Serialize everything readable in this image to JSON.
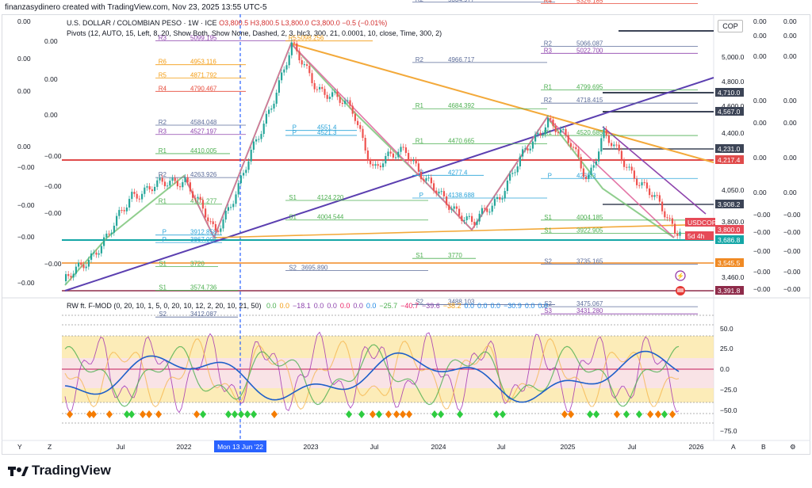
{
  "header": {
    "attribution": "finanzasydinero created with TradingView.com, Nov 23, 2025 13:55 UTC-5"
  },
  "legend": {
    "symbol": "U.S. DOLLAR / COLOMBIAN PESO · 1W · ICE",
    "o": "O3,800.5",
    "h": "H3,800.5",
    "l": "L3,800.0",
    "c": "C3,800.0",
    "chg": "−0.5 (−0.01%)",
    "pivots": "Pivots (12, AUTO, 15, Left, 8, 20, Show Both, Show None, Dashed, 2, 3, hlc3, 300, 21, 0.0001, 10, close, Time, 300, 2)"
  },
  "currency_button": "COP",
  "price_axis": [
    "5,000.0",
    "4,800.0",
    "4,600.0",
    "4,400.0",
    "4,050.0",
    "3,800.0",
    "3,460.0"
  ],
  "price_tags": [
    {
      "label": "4,710.0",
      "color": "#3c4456"
    },
    {
      "label": "4,567.0",
      "color": "#3c4456"
    },
    {
      "label": "4,231.0",
      "color": "#3c4456"
    },
    {
      "label": "4,217.4",
      "color": "#e04b4b"
    },
    {
      "label": "3,908.2",
      "color": "#3c4456"
    },
    {
      "label": "USDCOP",
      "color": "#e64a57"
    },
    {
      "label": "3,800.0",
      "color": "#e64a57"
    },
    {
      "label": "5d 4h",
      "color": "#e64a57"
    },
    {
      "label": "3,686.8",
      "color": "#14a6a6"
    },
    {
      "label": "3,545.5",
      "color": "#f08a24"
    },
    {
      "label": "3,391.8",
      "color": "#8e2b4a"
    }
  ],
  "left_zero_labels": [
    "0.00",
    "0.00",
    "0.00",
    "0.00",
    "0.00",
    "0.00",
    "0.00",
    "−0.00",
    "−0.00",
    "−0.00",
    "−0.00",
    "−0.00",
    "−0.00",
    "−0.00",
    "−0.00"
  ],
  "right_zero_labels": [
    "0.00",
    "0.00",
    "0.00",
    "0.00",
    "0.00",
    "0.00",
    "0.00",
    "−0.00",
    "−0.00",
    "−0.00",
    "−0.00",
    "−0.00",
    "−0.00",
    "−0.00",
    "−0.00"
  ],
  "pivot_levels": [
    {
      "name": "R3",
      "value": "5099.195",
      "color": "#8e44ad"
    },
    {
      "name": "R6",
      "value": "4953.116",
      "color": "#f39c12"
    },
    {
      "name": "R5",
      "value": "4871.792",
      "color": "#f39c12"
    },
    {
      "name": "R4",
      "value": "4790.467",
      "color": "#e74c3c"
    },
    {
      "name": "R2",
      "value": "4584.048",
      "color": "#5d6d9a"
    },
    {
      "name": "R3",
      "value": "4527.197",
      "color": "#8e44ad"
    },
    {
      "name": "R1",
      "value": "4410.005",
      "color": "#4caf50"
    },
    {
      "name": "R2",
      "value": "4263.926",
      "color": "#5d6d9a"
    },
    {
      "name": "R1",
      "value": "4101.277",
      "color": "#4caf50"
    },
    {
      "name": "S1",
      "value": "3720",
      "color": "#4caf50"
    },
    {
      "name": "S1",
      "value": "3574.736",
      "color": "#4caf50"
    },
    {
      "name": "S2",
      "value": "3412.087",
      "color": "#5d6d9a"
    },
    {
      "name": "R2",
      "value": "5334.977",
      "color": "#5d6d9a"
    },
    {
      "name": "R2",
      "value": "4966.717",
      "color": "#5d6d9a"
    },
    {
      "name": "R1",
      "value": "4684.392",
      "color": "#4caf50"
    },
    {
      "name": "R1",
      "value": "4470.665",
      "color": "#4caf50"
    },
    {
      "name": "S1",
      "value": "4124.220",
      "color": "#4caf50"
    },
    {
      "name": "S1",
      "value": "4004.544",
      "color": "#4caf50"
    },
    {
      "name": "P",
      "value": "4138.688",
      "color": "#29a3d9"
    },
    {
      "name": "S1",
      "value": "3770",
      "color": "#4caf50"
    },
    {
      "name": "S2",
      "value": "3695.890",
      "color": "#5d6d9a"
    },
    {
      "name": "S2",
      "value": "3488.103",
      "color": "#5d6d9a"
    },
    {
      "name": "R4",
      "value": "5326.185",
      "color": "#e74c3c"
    },
    {
      "name": "R2",
      "value": "5066.087",
      "color": "#5d6d9a"
    },
    {
      "name": "R3",
      "value": "5022.700",
      "color": "#8e44ad"
    },
    {
      "name": "R1",
      "value": "4799.695",
      "color": "#4caf50"
    },
    {
      "name": "R2",
      "value": "4718.415",
      "color": "#5d6d9a"
    },
    {
      "name": "R1",
      "value": "4520.685",
      "color": "#4caf50"
    },
    {
      "name": "P",
      "value": "4258.3",
      "color": "#29a3d9"
    },
    {
      "name": "S1",
      "value": "4004.185",
      "color": "#4caf50"
    },
    {
      "name": "S1",
      "value": "3922.905",
      "color": "#4caf50"
    },
    {
      "name": "S2",
      "value": "3735.165",
      "color": "#5d6d9a"
    },
    {
      "name": "S2",
      "value": "3475.067",
      "color": "#5d6d9a"
    },
    {
      "name": "S3",
      "value": "3431.280",
      "color": "#8e44ad"
    },
    {
      "name": "P",
      "value": "4521.3",
      "color": "#29a3d9"
    },
    {
      "name": "P",
      "value": "4551.4",
      "color": "#29a3d9"
    },
    {
      "name": "P",
      "value": "4277.4",
      "color": "#29a3d9"
    },
    {
      "name": "P",
      "value": "3867.007",
      "color": "#29a3d9"
    },
    {
      "name": "P",
      "value": "3912.858",
      "color": "#29a3d9"
    },
    {
      "name": "R5",
      "value": "5098.256",
      "color": "#f39c12"
    }
  ],
  "oscillator": {
    "title": "RW ft. F-MOD (0, 20, 10, 1, 5, 0, 20, 10, 12, 2, 20, 10, 21, 50)",
    "values": [
      {
        "v": "0.0",
        "color": "#4caf50"
      },
      {
        "v": "0.0",
        "color": "#f39c12"
      },
      {
        "v": "−18.1",
        "color": "#8e44ad"
      },
      {
        "v": "0.0",
        "color": "#8e44ad"
      },
      {
        "v": "0.0",
        "color": "#8e44ad"
      },
      {
        "v": "0.0",
        "color": "#e91e63"
      },
      {
        "v": "0.0",
        "color": "#8e44ad"
      },
      {
        "v": "0.0",
        "color": "#1e88e5"
      },
      {
        "v": "−25.7",
        "color": "#4caf50"
      },
      {
        "v": "−40.7",
        "color": "#e91e63"
      },
      {
        "v": "−39.6",
        "color": "#8e44ad"
      },
      {
        "v": "−38.2",
        "color": "#f39c12"
      },
      {
        "v": "0.0",
        "color": "#1e88e5"
      },
      {
        "v": "0.0",
        "color": "#1e88e5"
      },
      {
        "v": "0.0",
        "color": "#1e88e5"
      },
      {
        "v": "−30.9",
        "color": "#1e88e5"
      },
      {
        "v": "0.0",
        "color": "#1e88e5"
      },
      {
        "v": "0.0",
        "color": "#1e88e5"
      }
    ],
    "axis": [
      "50.0",
      "25.0",
      "0.0",
      "−25.0",
      "−50.0",
      "−75.0"
    ]
  },
  "time_axis": [
    "Jul",
    "2022",
    "2023",
    "Jul",
    "2024",
    "Jul",
    "2025",
    "Jul",
    "2026"
  ],
  "crosshair_date": "Mon 13 Jun '22",
  "corner_labels": {
    "left_y": "Y",
    "left_z": "Z",
    "right_a": "A",
    "right_b": "B"
  },
  "brand": "TradingView"
}
